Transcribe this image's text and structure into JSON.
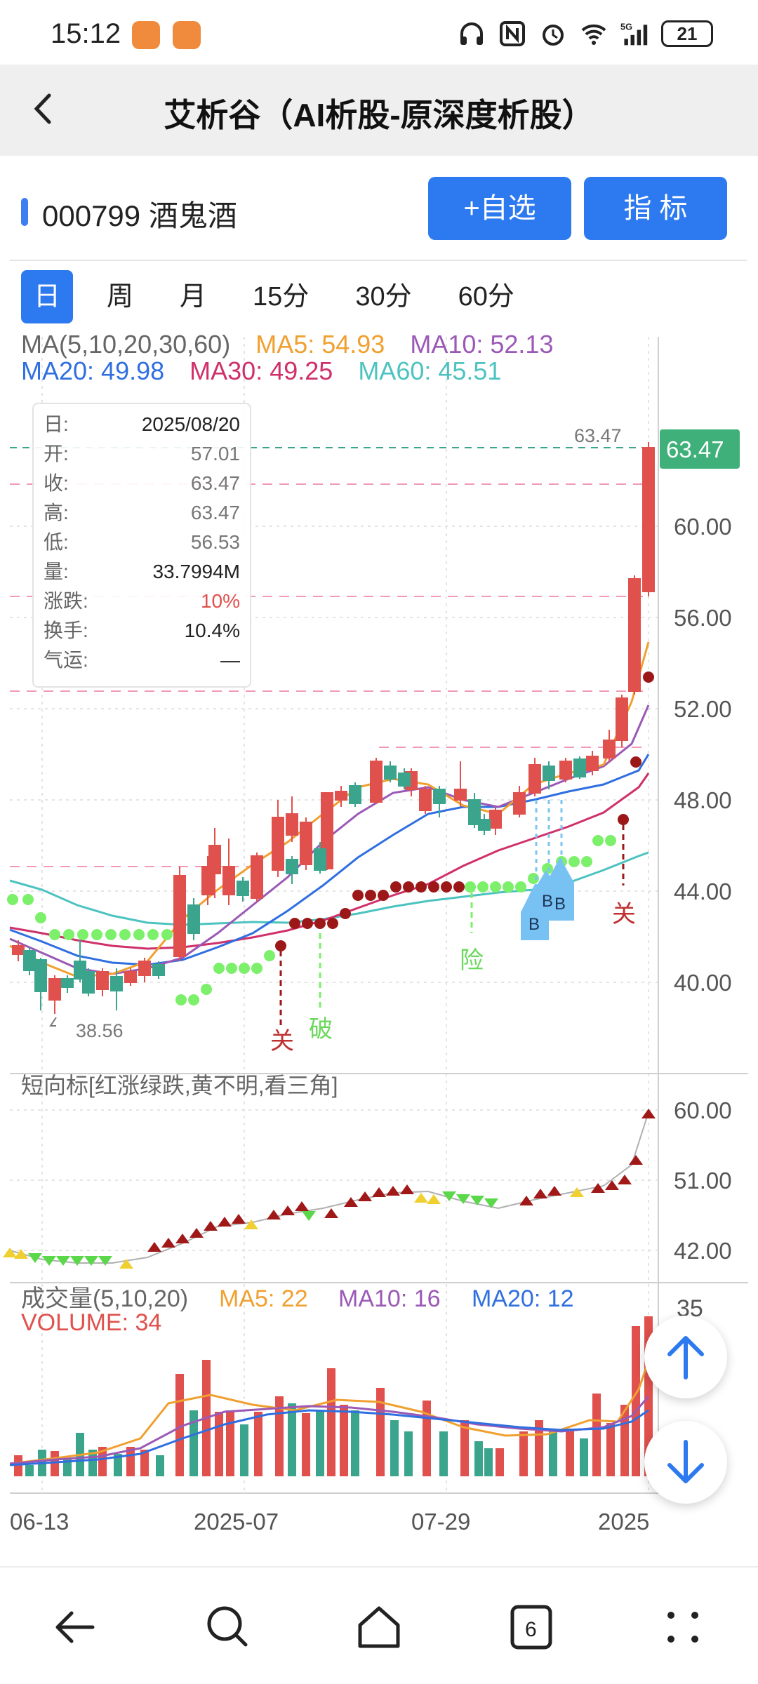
{
  "status": {
    "time": "15:12",
    "battery": "21",
    "network": "5G"
  },
  "titlebar": {
    "title": "艾析谷（AI析股-原深度析股）"
  },
  "stock": {
    "code_name": "000799 酒鬼酒",
    "add_watch_label": "+自选",
    "indicator_label": "指  标"
  },
  "tabs": [
    "日",
    "周",
    "月",
    "15分",
    "30分",
    "60分"
  ],
  "ma_legend": {
    "title": "MA(5,10,20,30,60)",
    "ma5": "MA5: 54.93",
    "ma10": "MA10: 52.13",
    "ma20": "MA20: 49.98",
    "ma30": "MA30: 49.25",
    "ma60": "MA60: 45.51"
  },
  "infobox": {
    "rows": [
      {
        "label": "日:",
        "value": "2025/08/20"
      },
      {
        "label": "开:",
        "value": "57.01"
      },
      {
        "label": "收:",
        "value": "63.47"
      },
      {
        "label": "高:",
        "value": "63.47"
      },
      {
        "label": "低:",
        "value": "56.53"
      },
      {
        "label": "量:",
        "value": "33.7994M"
      },
      {
        "label": "涨跌:",
        "value": "10%"
      },
      {
        "label": "换手:",
        "value": "10.4%"
      },
      {
        "label": "气运:",
        "value": "—"
      }
    ]
  },
  "price_axis": {
    "ticks": [
      "60.00",
      "56.00",
      "52.00",
      "48.00",
      "44.00",
      "40.00"
    ],
    "last_price": "63.47",
    "high_label": "63.47",
    "low_label": "38.56"
  },
  "signals": {
    "guan1": "关",
    "po": "破",
    "xian": "险",
    "guan2": "关",
    "b1": "B",
    "b2": "B",
    "b3": "B"
  },
  "short_indicator": {
    "title": "短向标[红涨绿跌,黄不明,看三角]",
    "ticks": [
      "60.00",
      "51.00",
      "42.00"
    ]
  },
  "volume": {
    "title": "成交量(5,10,20)",
    "ma5": "MA5: 22",
    "ma10": "MA10: 16",
    "ma20": "MA20: 12",
    "volume_label": "VOLUME: 34",
    "top_tick": "35"
  },
  "x_axis": [
    "06-13",
    "2025-07",
    "07-29",
    "2025"
  ],
  "colors": {
    "up": "#e0504c",
    "down": "#3aa58c",
    "ma5": "#f0a030",
    "ma10": "#9b59b6",
    "ma20": "#2f6fe0",
    "ma30": "#d0306a",
    "ma60": "#4cc3c0",
    "accent": "#2d79ef"
  },
  "nav_icons": [
    "back-arrow-icon",
    "search-icon",
    "home-icon",
    "tabs-icon",
    "more-icon"
  ],
  "nav": {
    "tab_count": "6"
  }
}
